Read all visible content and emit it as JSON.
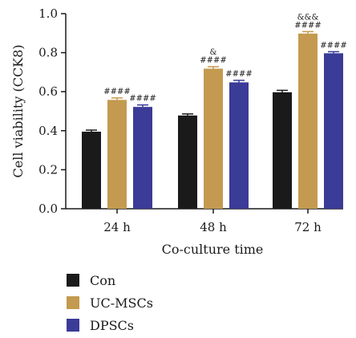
{
  "chart_data": {
    "type": "bar",
    "xlabel": "Co-culture time",
    "ylabel": "Cell viability (CCK8)",
    "ylim": [
      0.0,
      1.0
    ],
    "yticks": [
      "0.0",
      "0.2",
      "0.4",
      "0.6",
      "0.8",
      "1.0"
    ],
    "categories": [
      "24 h",
      "48 h",
      "72 h"
    ],
    "series": [
      {
        "name": "Con",
        "color": "#1a1a1a",
        "values": [
          0.395,
          0.478,
          0.597
        ],
        "errors": [
          0.008,
          0.008,
          0.01
        ],
        "labels": [
          [],
          [],
          []
        ]
      },
      {
        "name": "UC-MSCs",
        "color": "#c39a4f",
        "values": [
          0.558,
          0.718,
          0.898
        ],
        "errors": [
          0.01,
          0.01,
          0.01
        ],
        "labels": [
          [
            "####"
          ],
          [
            "&",
            "####"
          ],
          [
            "&&&",
            "####"
          ]
        ]
      },
      {
        "name": "DPSCs",
        "color": "#3b3b98",
        "values": [
          0.522,
          0.648,
          0.797
        ],
        "errors": [
          0.01,
          0.01,
          0.008
        ],
        "labels": [
          [
            "####"
          ],
          [
            "####"
          ],
          [
            "####"
          ]
        ]
      }
    ],
    "grid": false,
    "legend": "bottom-left"
  }
}
